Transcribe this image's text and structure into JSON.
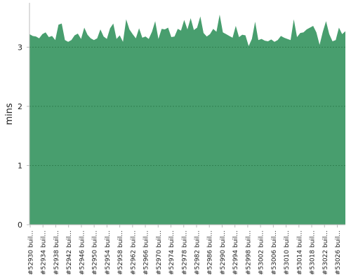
{
  "chart_data": {
    "type": "area",
    "title": "",
    "xlabel": "",
    "ylabel": "mins",
    "ylim": [
      0,
      3.75
    ],
    "yticks": [
      0,
      1,
      2,
      3
    ],
    "grid": true,
    "legend": "none",
    "colors": {
      "fill": "#489e6e",
      "grid": "#1f6b3c",
      "axis": "#bbbbbb",
      "text": "#222222"
    },
    "x_tick_labels": [
      "#52930 buil...",
      "#52934 buil...",
      "#52938 buil...",
      "#52942 buil...",
      "#52946 buil...",
      "#52950 buil...",
      "#52954 buil...",
      "#52958 buil...",
      "#52962 buil...",
      "#52966 buil...",
      "#52970 buil...",
      "#52974 buil...",
      "#52978 buil...",
      "#52982 buil...",
      "#52986 buil...",
      "#52990 buil...",
      "#52994 buil...",
      "#52998 buil...",
      "#53002 buil...",
      "#53006 buil...",
      "#53010 buil...",
      "#53014 buil...",
      "#53018 buil...",
      "#53022 buil...",
      "#53026 buil..."
    ],
    "series": [
      {
        "values": [
          3.22,
          3.19,
          3.18,
          3.15,
          3.22,
          3.25,
          3.17,
          3.19,
          3.12,
          3.38,
          3.4,
          3.12,
          3.09,
          3.12,
          3.2,
          3.23,
          3.14,
          3.33,
          3.21,
          3.15,
          3.12,
          3.15,
          3.3,
          3.18,
          3.14,
          3.32,
          3.4,
          3.14,
          3.2,
          3.09,
          3.47,
          3.3,
          3.22,
          3.15,
          3.32,
          3.16,
          3.18,
          3.14,
          3.26,
          3.44,
          3.14,
          3.31,
          3.3,
          3.33,
          3.17,
          3.18,
          3.31,
          3.28,
          3.46,
          3.3,
          3.49,
          3.29,
          3.33,
          3.52,
          3.24,
          3.18,
          3.22,
          3.31,
          3.26,
          3.55,
          3.25,
          3.22,
          3.19,
          3.16,
          3.36,
          3.17,
          3.21,
          3.2,
          3.02,
          3.14,
          3.43,
          3.12,
          3.14,
          3.11,
          3.1,
          3.13,
          3.09,
          3.12,
          3.19,
          3.16,
          3.14,
          3.12,
          3.47,
          3.17,
          3.24,
          3.25,
          3.3,
          3.33,
          3.36,
          3.25,
          3.04,
          3.26,
          3.44,
          3.22,
          3.1,
          3.12,
          3.33,
          3.22,
          3.27
        ]
      }
    ]
  }
}
